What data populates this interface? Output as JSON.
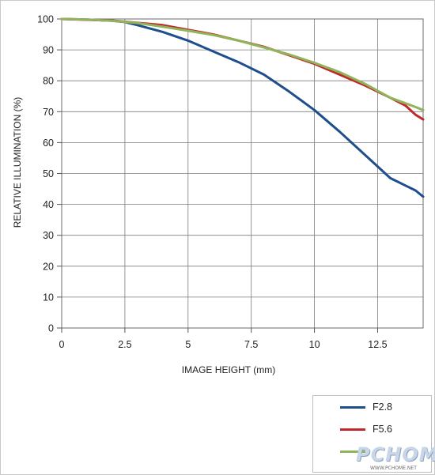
{
  "chart_data": {
    "type": "line",
    "xlabel": "IMAGE HEIGHT (mm)",
    "ylabel": "RELATIVE ILLUMINATION (%)",
    "xlim": [
      0,
      14.3
    ],
    "ylim": [
      0,
      100
    ],
    "x_ticks": [
      0,
      2.5,
      5,
      7.5,
      10,
      12.5
    ],
    "x_tick_labels": [
      "0",
      "2.5",
      "5",
      "7.5",
      "10",
      "12.5"
    ],
    "y_ticks": [
      0,
      10,
      20,
      30,
      40,
      50,
      60,
      70,
      80,
      90,
      100
    ],
    "y_tick_labels": [
      "0",
      "10",
      "20",
      "30",
      "40",
      "50",
      "60",
      "70",
      "80",
      "90",
      "100"
    ],
    "grid": true,
    "legend_position": "bottom-right",
    "series": [
      {
        "name": "F2.8",
        "color": "#1f4e8c",
        "x": [
          0,
          1,
          2,
          2.5,
          3,
          4,
          5,
          6,
          7,
          8,
          9,
          10,
          11,
          12,
          13,
          14,
          14.3
        ],
        "y": [
          100,
          99.8,
          99.4,
          99,
          98,
          95.8,
          93,
          89.5,
          86,
          82,
          76.5,
          70.5,
          63.5,
          56,
          48.5,
          44.5,
          42.5
        ]
      },
      {
        "name": "F5.6",
        "color": "#c0282b",
        "x": [
          0,
          2,
          4,
          6,
          8,
          10,
          12,
          13,
          13.6,
          14,
          14.3
        ],
        "y": [
          100,
          99.5,
          98,
          95,
          91,
          85.5,
          78.5,
          74.5,
          72,
          69,
          67.5
        ]
      },
      {
        "name": "",
        "color": "#8fb45a",
        "x": [
          0,
          1,
          2,
          3,
          4,
          5,
          6,
          7,
          8,
          9,
          10,
          11,
          12,
          13,
          14,
          14.3
        ],
        "y": [
          100,
          99.8,
          99.4,
          98.7,
          97.5,
          96.2,
          94.8,
          93,
          90.8,
          88.5,
          85.8,
          82.8,
          79,
          74.5,
          71.5,
          70.5
        ]
      }
    ]
  },
  "watermark": {
    "logo": "PCHOME",
    "url": "WWW.PCHOME.NET"
  }
}
